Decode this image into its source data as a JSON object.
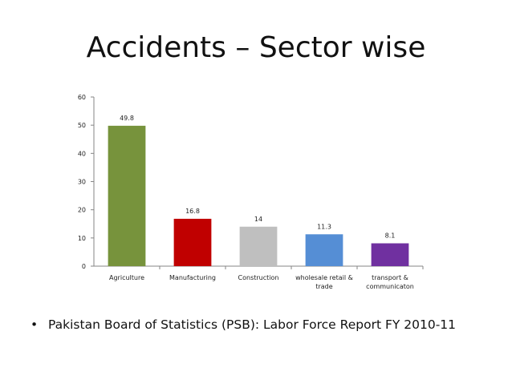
{
  "slide": {
    "title": "Accidents – Sector wise",
    "bullet": "Pakistan Board of Statistics (PSB): Labor Force Report FY 2010-11"
  },
  "chart_data": {
    "type": "bar",
    "categories": [
      [
        "Agriculture"
      ],
      [
        "Manufacturing"
      ],
      [
        "Construction"
      ],
      [
        "wholesale retail &",
        "trade"
      ],
      [
        "transport &",
        "communicaton"
      ]
    ],
    "values": [
      49.8,
      16.8,
      14,
      11.3,
      8.1
    ],
    "data_labels": [
      "49.8",
      "16.8",
      "14",
      "11.3",
      "8.1"
    ],
    "colors": [
      "#77933c",
      "#c00000",
      "#bfbfbf",
      "#558ed5",
      "#7030a0"
    ],
    "yticks": [
      0,
      10,
      20,
      30,
      40,
      50,
      60
    ],
    "ylim": [
      0,
      60
    ],
    "title": "",
    "xlabel": "",
    "ylabel": "",
    "grid": false,
    "legend": "none"
  }
}
